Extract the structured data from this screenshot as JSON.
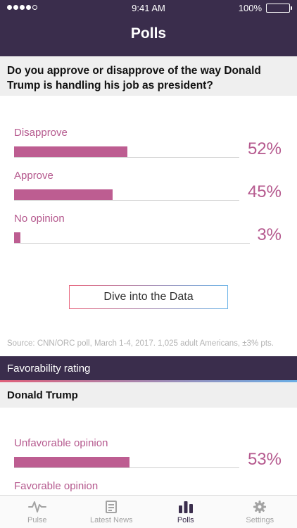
{
  "status_bar": {
    "time": "9:41 AM",
    "battery": "100%"
  },
  "header": {
    "title": "Polls"
  },
  "question": "Do you approve or disapprove of the way Donald Trump is handling his job as president?",
  "poll": [
    {
      "label": "Disapprove",
      "value": 52,
      "display": "52%"
    },
    {
      "label": "Approve",
      "value": 45,
      "display": "45%"
    },
    {
      "label": "No opinion",
      "value": 3,
      "display": "3%"
    }
  ],
  "dive_button": "Dive into the Data",
  "source": "Source: CNN/ORC poll, March 1-4, 2017. 1,025 adult Americans, ±3% pts.",
  "favorability": {
    "title": "Favorability rating",
    "candidate": "Donald Trump",
    "rows": [
      {
        "label": "Unfavorable opinion",
        "value": 53,
        "display": "53%"
      },
      {
        "label": "Favorable opinion"
      }
    ]
  },
  "tabs": [
    {
      "label": "Pulse",
      "icon": "pulse-icon",
      "active": false
    },
    {
      "label": "Latest News",
      "icon": "news-icon",
      "active": false
    },
    {
      "label": "Polls",
      "icon": "polls-icon",
      "active": true
    },
    {
      "label": "Settings",
      "icon": "gear-icon",
      "active": false
    }
  ],
  "colors": {
    "header": "#3a2d4c",
    "accent": "#b5598e",
    "bar": "#bd5d91",
    "gradient_start": "#e0607a",
    "gradient_end": "#6aaee6"
  }
}
